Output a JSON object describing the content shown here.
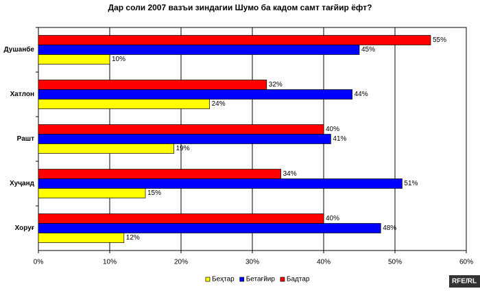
{
  "chart_data": {
    "type": "bar",
    "orientation": "horizontal",
    "title": "Дар соли 2007 вазъи зиндагии Шумо ба кадом самт тағйир ёфт?",
    "categories": [
      "Душанбе",
      "Хатлон",
      "Рашт",
      "Хуҷанд",
      "Хоруғ"
    ],
    "series": [
      {
        "name": "Беҳтар",
        "color": "#ffff00",
        "values": [
          10,
          24,
          19,
          15,
          12
        ],
        "value_labels": [
          "10%",
          "24%",
          "19%",
          "15%",
          "12%"
        ]
      },
      {
        "name": "Бетағйир",
        "color": "#0000ff",
        "values": [
          45,
          44,
          41,
          51,
          48
        ],
        "value_labels": [
          "45%",
          "44%",
          "41%",
          "51%",
          "48%"
        ]
      },
      {
        "name": "Бадтар",
        "color": "#ff0000",
        "values": [
          55,
          32,
          40,
          34,
          40
        ],
        "value_labels": [
          "55%",
          "32%",
          "40%",
          "34%",
          "40%"
        ]
      }
    ],
    "xlim": [
      0,
      60
    ],
    "xticks": [
      {
        "value": 0,
        "label": "0%"
      },
      {
        "value": 10,
        "label": "10%"
      },
      {
        "value": 20,
        "label": "20%"
      },
      {
        "value": 30,
        "label": "30%"
      },
      {
        "value": 40,
        "label": "40%"
      },
      {
        "value": 50,
        "label": "50%"
      },
      {
        "value": 60,
        "label": "60%"
      }
    ],
    "grid": true,
    "legend": "bottom",
    "watermark": "RFE/RL"
  }
}
